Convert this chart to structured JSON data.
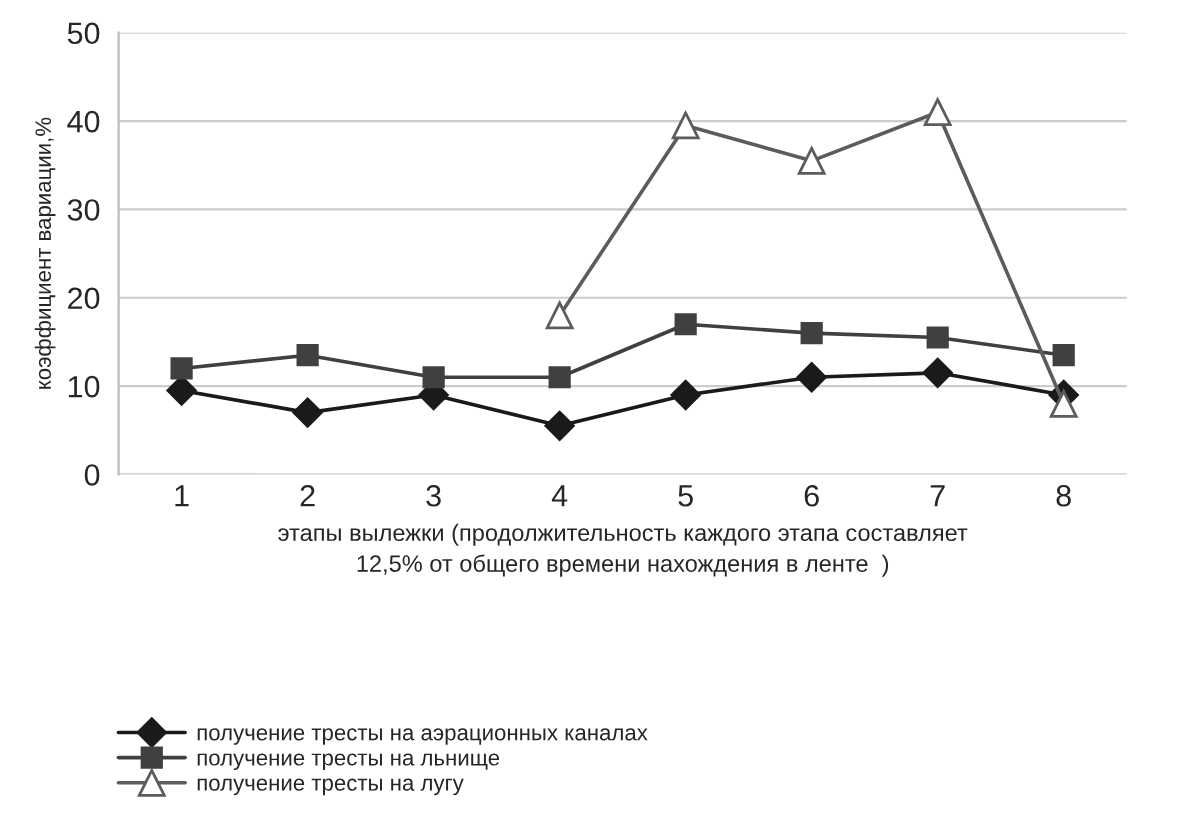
{
  "chart_data": {
    "type": "line",
    "categories": [
      "1",
      "2",
      "3",
      "4",
      "5",
      "6",
      "7",
      "8"
    ],
    "xlabel": "этапы вылежки (продолжительность каждого этапа составляет\n12,5% от общего времени нахождения в ленте  )",
    "ylabel": "коэффициент вариации,%",
    "ylim": [
      0,
      50
    ],
    "yticks": [
      0,
      10,
      20,
      30,
      40,
      50
    ],
    "grid": "y",
    "legend": "bottom",
    "series": [
      {
        "name": "получение тресты на аэрационных каналах",
        "color": "#1a1a1a",
        "marker": "diamond",
        "values": [
          9.5,
          7,
          9,
          5.5,
          9,
          11,
          11.5,
          9
        ]
      },
      {
        "name": "получение тресты на льнище",
        "color": "#404040",
        "marker": "square",
        "values": [
          12,
          13.5,
          11,
          11,
          17,
          16,
          15.5,
          13.5
        ]
      },
      {
        "name": "получение тресты на лугу",
        "color": "#5c5c5c",
        "marker": "triangle",
        "values": [
          null,
          null,
          null,
          18,
          39.5,
          35.5,
          41,
          8
        ]
      }
    ]
  }
}
